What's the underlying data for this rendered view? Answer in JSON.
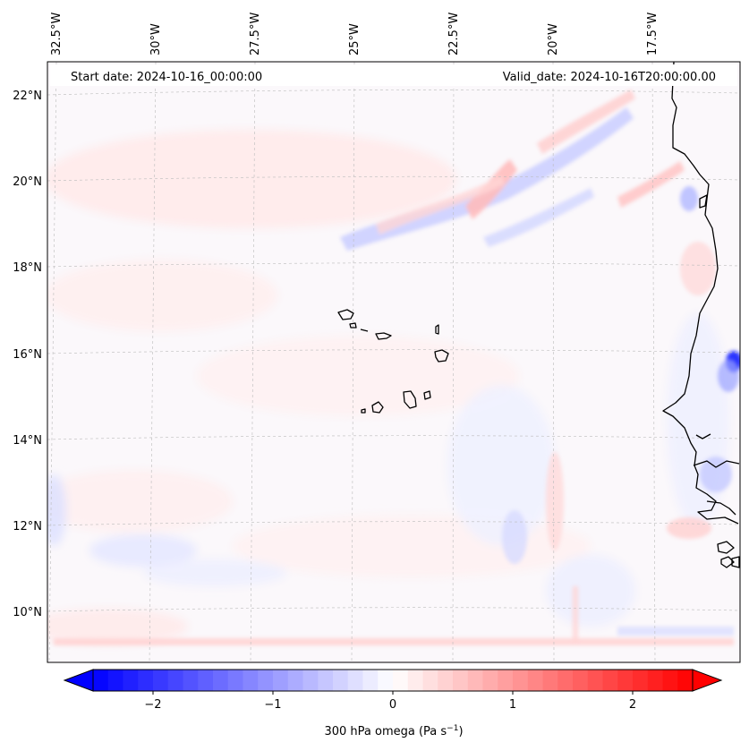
{
  "map": {
    "start_date_text": "Start date: 2024-10-16_00:00:00",
    "valid_date_text": "Valid_date: 2024-10-16T20:00:00.00",
    "lon_labels": [
      "32.5°W",
      "30°W",
      "27.5°W",
      "25°W",
      "22.5°W",
      "20°W",
      "17.5°W"
    ],
    "lat_labels": [
      "22°N",
      "20°N",
      "18°N",
      "16°N",
      "14°N",
      "12°N",
      "10°N"
    ],
    "field": "300 hPa omega",
    "extent": {
      "lon_min": -33.0,
      "lon_max": -15.6,
      "lat_min": 8.9,
      "lat_max": 22.8
    }
  },
  "colorbar": {
    "label_main": "300 hPa omega (Pa s",
    "label_exp": "−1",
    "label_close": ")",
    "ticks": [
      {
        "value": -2,
        "label": "−2"
      },
      {
        "value": -1,
        "label": "−1"
      },
      {
        "value": 0,
        "label": "0"
      },
      {
        "value": 1,
        "label": "1"
      },
      {
        "value": 2,
        "label": "2"
      }
    ],
    "vmin": -2.5,
    "vmax": 2.5,
    "levels": 40,
    "colormap": "bwr",
    "neg_color": "#0000ff",
    "mid_color": "#ffffff",
    "pos_color": "#ff0000"
  },
  "colors": {
    "coastline": "#000000",
    "grid": "#bbbbbb"
  }
}
